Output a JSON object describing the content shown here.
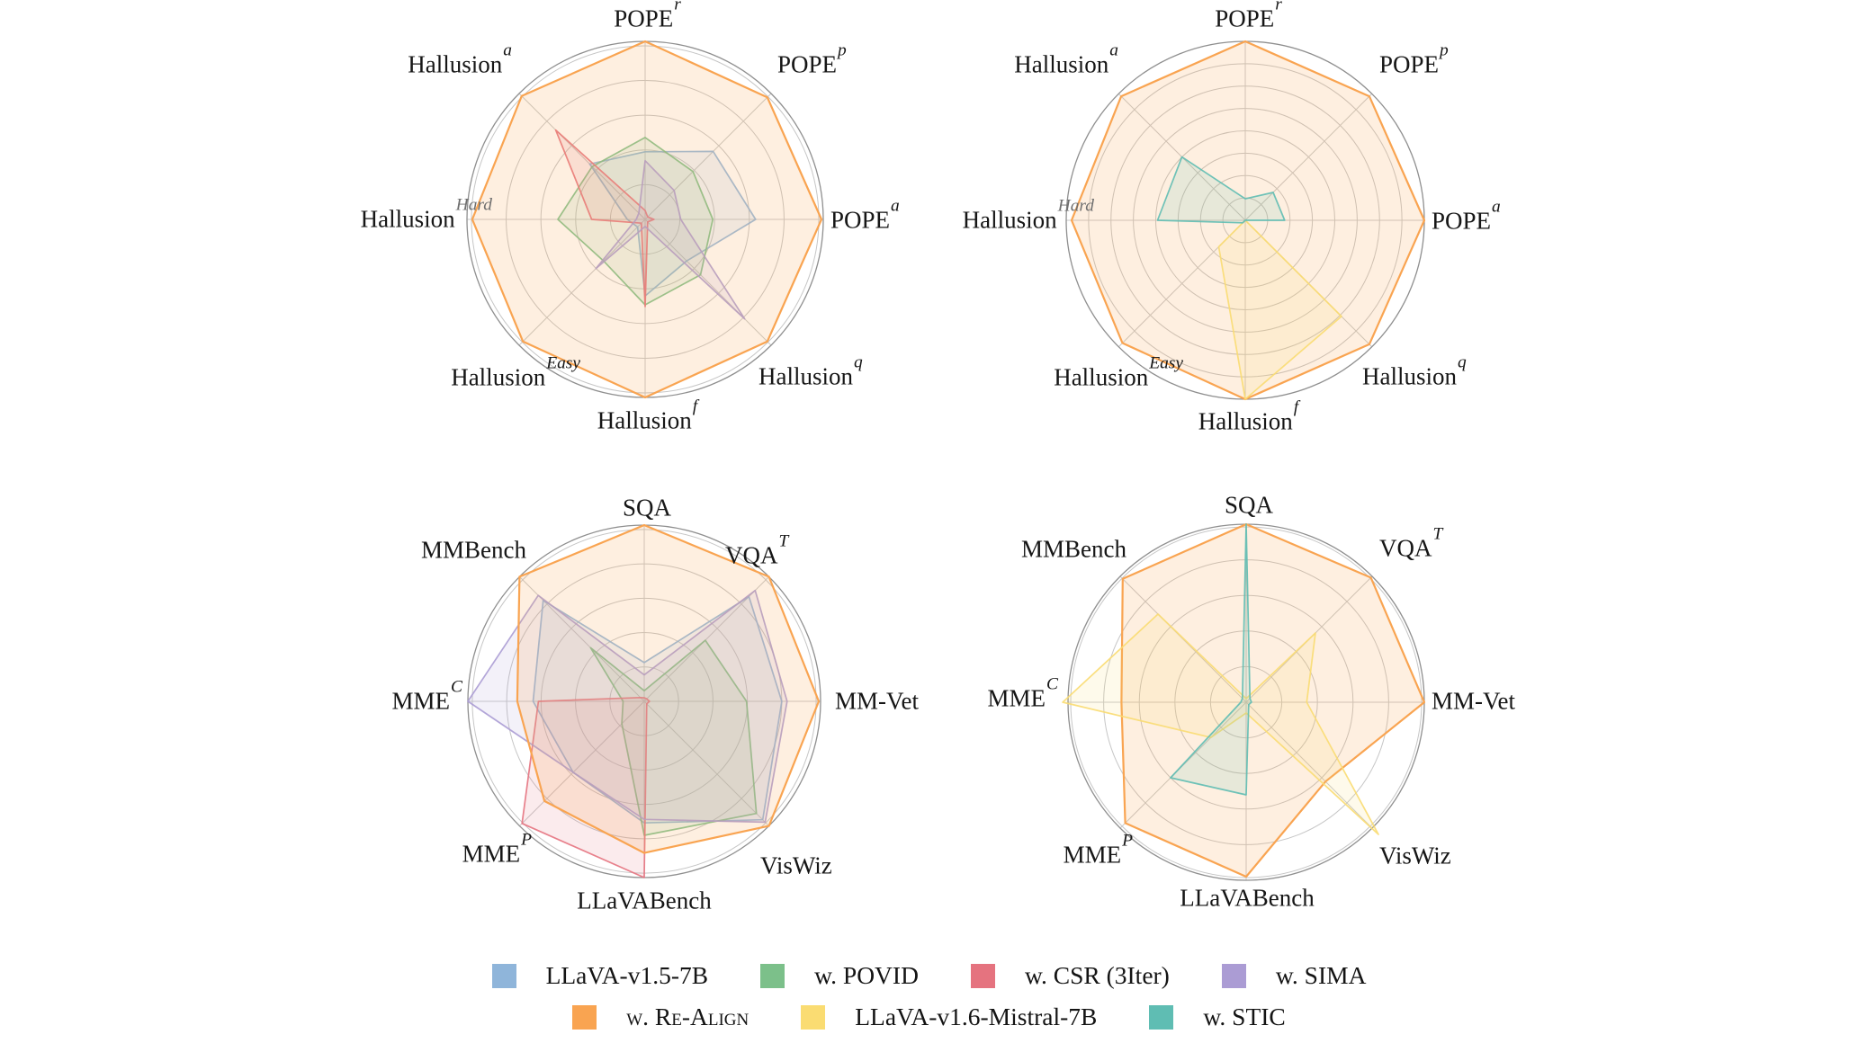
{
  "figure_background": "#ffffff",
  "grid": {
    "ring_color": "#c6c6c6",
    "spoke_color": "#c9c9c9",
    "outline_color": "#8f8f8f"
  },
  "chart_data": {
    "type": "radar",
    "description": "Four radar charts comparing LLaVA model variants across benchmark axes; values are relative radii 0-1 (no numeric tick labels shown).",
    "legend": {
      "position": "bottom-center",
      "rows": [
        {
          "items": [
            {
              "name": "LLaVA-v1.5-7B",
              "color": "#8fb5da"
            },
            {
              "name": "w. POVID",
              "color": "#7cc08a"
            },
            {
              "name": "w. CSR (3Iter)",
              "color": "#e5737f"
            },
            {
              "name": "w. SIMA",
              "color": "#ab9cd4"
            }
          ]
        },
        {
          "items": [
            {
              "name": "w. Re-Align",
              "color": "#f9a451"
            },
            {
              "name": "LLaVA-v1.6-Mistral-7B",
              "color": "#fadc72"
            },
            {
              "name": "w. STIC",
              "color": "#5fbdb3"
            }
          ]
        }
      ]
    },
    "charts": [
      {
        "id": "top-left",
        "axes": [
          {
            "label": "POPE",
            "sup": "r"
          },
          {
            "label": "POPE",
            "sup": "p"
          },
          {
            "label": "POPE",
            "sup": "a"
          },
          {
            "label": "Hallusion",
            "sup": "q"
          },
          {
            "label": "Hallusion",
            "sup": "f"
          },
          {
            "label": "Hallusion",
            "sup": "Easy"
          },
          {
            "label": "Hallusion",
            "sup": "Hard"
          },
          {
            "label": "Hallusion",
            "sup": "a"
          }
        ],
        "series": [
          {
            "name": "LLaVA-v1.5-7B",
            "color": "#8fb5da",
            "values": [
              0.38,
              0.54,
              0.62,
              0.33,
              0.43,
              0.06,
              0.1,
              0.44
            ]
          },
          {
            "name": "w. POVID",
            "color": "#7cc08a",
            "values": [
              0.46,
              0.38,
              0.38,
              0.44,
              0.48,
              0.33,
              0.49,
              0.42
            ]
          },
          {
            "name": "w. CSR (3Iter)",
            "color": "#e5737f",
            "values": [
              0.05,
              0.02,
              0.05,
              0.02,
              0.49,
              0.03,
              0.3,
              0.71
            ]
          },
          {
            "name": "w. SIMA",
            "color": "#ab9cd4",
            "values": [
              0.33,
              0.23,
              0.2,
              0.79,
              0.04,
              0.39,
              0.05,
              0.05
            ]
          },
          {
            "name": "w. Re-Align",
            "color": "#f9a451",
            "values": [
              1.0,
              0.97,
              0.99,
              0.97,
              1.0,
              0.97,
              0.97,
              0.98
            ]
          }
        ]
      },
      {
        "id": "top-right",
        "axes": [
          {
            "label": "POPE",
            "sup": "r"
          },
          {
            "label": "POPE",
            "sup": "p"
          },
          {
            "label": "POPE",
            "sup": "a"
          },
          {
            "label": "Hallusion",
            "sup": "q"
          },
          {
            "label": "Hallusion",
            "sup": "f"
          },
          {
            "label": "Hallusion",
            "sup": "Easy"
          },
          {
            "label": "Hallusion",
            "sup": "Hard"
          },
          {
            "label": "Hallusion",
            "sup": "a"
          }
        ],
        "series": [
          {
            "name": "w. Re-Align",
            "color": "#f9a451",
            "values": [
              1.0,
              0.98,
              1.0,
              0.98,
              1.0,
              0.97,
              0.97,
              0.98
            ]
          },
          {
            "name": "LLaVA-v1.6-Mistral-7B",
            "color": "#fadc72",
            "values": [
              0.0,
              0.0,
              0.0,
              0.76,
              1.0,
              0.21,
              0.0,
              0.0
            ]
          },
          {
            "name": "w. STIC",
            "color": "#5fbdb3",
            "values": [
              0.12,
              0.22,
              0.22,
              0.0,
              0.0,
              0.02,
              0.49,
              0.5
            ]
          }
        ]
      },
      {
        "id": "bottom-left",
        "axes": [
          {
            "label": "SQA",
            "sup": ""
          },
          {
            "label": "VQA",
            "sup": "T"
          },
          {
            "label": "MM-Vet",
            "sup": ""
          },
          {
            "label": "VisWiz",
            "sup": ""
          },
          {
            "label": "LLaVABench",
            "sup": ""
          },
          {
            "label": "MME",
            "sup": "P"
          },
          {
            "label": "MME",
            "sup": "C"
          },
          {
            "label": "MMBench",
            "sup": ""
          }
        ],
        "series": [
          {
            "name": "LLaVA-v1.5-7B",
            "color": "#8fb5da",
            "values": [
              0.22,
              0.84,
              0.78,
              0.95,
              0.69,
              0.57,
              0.63,
              0.81
            ]
          },
          {
            "name": "w. POVID",
            "color": "#7cc08a",
            "values": [
              0.06,
              0.49,
              0.58,
              0.9,
              0.76,
              0.18,
              0.12,
              0.43
            ]
          },
          {
            "name": "w. CSR (3Iter)",
            "color": "#e5737f",
            "values": [
              0.02,
              0.02,
              0.03,
              0.02,
              1.0,
              0.98,
              0.6,
              0.03
            ]
          },
          {
            "name": "w. SIMA",
            "color": "#ab9cd4",
            "values": [
              0.15,
              0.89,
              0.81,
              0.97,
              0.67,
              0.57,
              1.0,
              0.85
            ]
          },
          {
            "name": "w. Re-Align",
            "color": "#f9a451",
            "values": [
              1.0,
              1.0,
              0.99,
              1.0,
              0.86,
              0.8,
              0.72,
              1.0
            ]
          }
        ]
      },
      {
        "id": "bottom-right",
        "axes": [
          {
            "label": "SQA",
            "sup": ""
          },
          {
            "label": "VQA",
            "sup": "T"
          },
          {
            "label": "MM-Vet",
            "sup": ""
          },
          {
            "label": "VisWiz",
            "sup": ""
          },
          {
            "label": "LLaVABench",
            "sup": ""
          },
          {
            "label": "MME",
            "sup": "P"
          },
          {
            "label": "MME",
            "sup": "C"
          },
          {
            "label": "MMBench",
            "sup": ""
          }
        ],
        "series": [
          {
            "name": "w. Re-Align",
            "color": "#f9a451",
            "values": [
              1.0,
              0.99,
              1.0,
              0.63,
              0.98,
              0.96,
              0.7,
              0.98
            ]
          },
          {
            "name": "LLaVA-v1.6-Mistral-7B",
            "color": "#fadc72",
            "values": [
              0.02,
              0.55,
              0.34,
              1.05,
              0.06,
              0.28,
              1.03,
              0.7
            ]
          },
          {
            "name": "w. STIC",
            "color": "#5fbdb3",
            "values": [
              1.0,
              0.03,
              0.03,
              0.02,
              0.52,
              0.6,
              0.03,
              0.03
            ]
          }
        ]
      }
    ]
  }
}
